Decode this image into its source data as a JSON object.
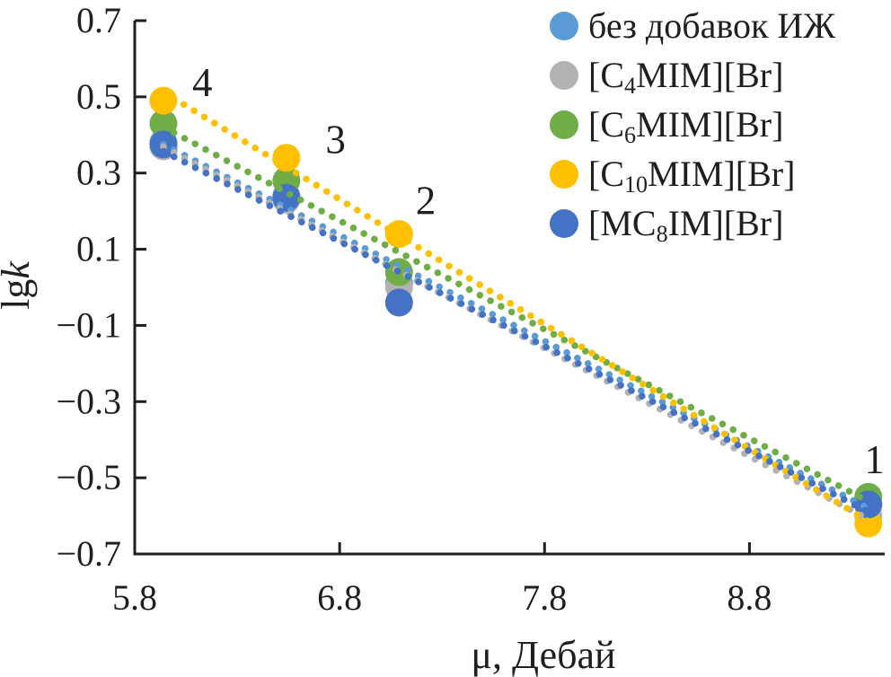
{
  "figure": {
    "background": "#FFFFFF",
    "text_color": "#1F1F1F",
    "axis_color": "#1F1F1F"
  },
  "chart_data": {
    "type": "scatter",
    "title": "",
    "xlabel": "μ, Дебай",
    "ylabel": {
      "regular": "lg",
      "italic": "k"
    },
    "xlim": [
      5.8,
      9.46
    ],
    "ylim": [
      -0.7,
      0.7
    ],
    "grid": false,
    "legend_position": "top-right",
    "xticks": [
      {
        "value": 5.8,
        "label": "5.8"
      },
      {
        "value": 6.8,
        "label": "6.8"
      },
      {
        "value": 7.8,
        "label": "7.8"
      },
      {
        "value": 8.8,
        "label": "8.8"
      }
    ],
    "yticks": [
      {
        "value": 0.7,
        "label": "0.7"
      },
      {
        "value": 0.5,
        "label": "0.5"
      },
      {
        "value": 0.3,
        "label": "0.3"
      },
      {
        "value": 0.1,
        "label": "0.1"
      },
      {
        "value": -0.1,
        "label": "−0.1"
      },
      {
        "value": -0.3,
        "label": "−0.3"
      },
      {
        "value": -0.5,
        "label": "−0.5"
      },
      {
        "value": -0.7,
        "label": "−0.7"
      }
    ],
    "x": [
      5.94,
      6.54,
      7.09,
      9.38
    ],
    "series": [
      {
        "name": "без добавок ИЖ",
        "label_parts": {
          "pre": "без добавок ИЖ",
          "sub": "",
          "post": ""
        },
        "color": "#5B9BD5",
        "values": [
          0.38,
          0.24,
          0.01,
          -0.57
        ],
        "trendline": "linear-dotted"
      },
      {
        "name": "[C4MIM][Br]",
        "label_parts": {
          "pre": "[C",
          "sub": "4",
          "post": "MIM][Br]"
        },
        "color": "#B2B2B2",
        "values": [
          0.37,
          0.23,
          0.0,
          -0.6
        ],
        "trendline": "linear-dotted"
      },
      {
        "name": "[C6MIM][Br]",
        "label_parts": {
          "pre": "[C",
          "sub": "6",
          "post": "MIM][Br]"
        },
        "color": "#70AD47",
        "values": [
          0.43,
          0.28,
          0.04,
          -0.55
        ],
        "trendline": "linear-dotted"
      },
      {
        "name": "[C10MIM][Br]",
        "label_parts": {
          "pre": "[C",
          "sub": "10",
          "post": "MIM][Br]"
        },
        "color": "#FFC000",
        "values": [
          0.49,
          0.34,
          0.14,
          -0.62
        ],
        "trendline": "linear-dotted"
      },
      {
        "name": "[MC8IM][Br]",
        "label_parts": {
          "pre": "[MC",
          "sub": "8",
          "post": "IM][Br]"
        },
        "color": "#4472C4",
        "values": [
          0.375,
          0.235,
          -0.04,
          -0.57
        ],
        "trendline": "linear-dotted"
      }
    ],
    "point_labels": [
      {
        "text": "4",
        "x": 6.13,
        "y": 0.54
      },
      {
        "text": "3",
        "x": 6.78,
        "y": 0.39
      },
      {
        "text": "2",
        "x": 7.22,
        "y": 0.23
      },
      {
        "text": "1",
        "x": 9.41,
        "y": -0.45
      }
    ]
  }
}
